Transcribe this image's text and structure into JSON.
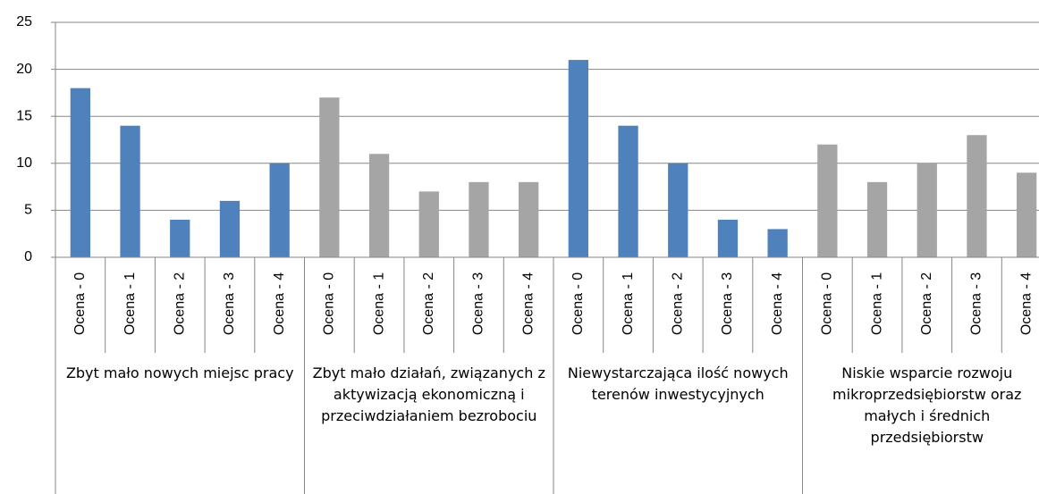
{
  "chart_data": {
    "type": "bar",
    "categories": [
      "Ocena - 0",
      "Ocena - 1",
      "Ocena - 2",
      "Ocena - 3",
      "Ocena - 4"
    ],
    "groups": [
      {
        "name": "Zbyt mało nowych miejsc pracy",
        "color": "#4f81bd",
        "values": [
          18,
          14,
          4,
          6,
          10
        ]
      },
      {
        "name": "Zbyt mało działań, związanych z aktywizacją ekonomiczną i przeciwdziałaniem bezrobociu",
        "color": "#a5a5a5",
        "values": [
          17,
          11,
          7,
          8,
          8
        ]
      },
      {
        "name": "Niewystarczająca ilość nowych terenów inwestycyjnych",
        "color": "#4f81bd",
        "values": [
          21,
          14,
          10,
          4,
          3
        ]
      },
      {
        "name": "Niskie wsparcie rozwoju mikroprzedsiębiorstw oraz małych i średnich przedsiębiorstw",
        "color": "#a5a5a5",
        "values": [
          12,
          8,
          10,
          13,
          9
        ]
      }
    ],
    "ylim": [
      0,
      25
    ],
    "yticks": [
      0,
      5,
      10,
      15,
      20,
      25
    ],
    "grid": true
  }
}
